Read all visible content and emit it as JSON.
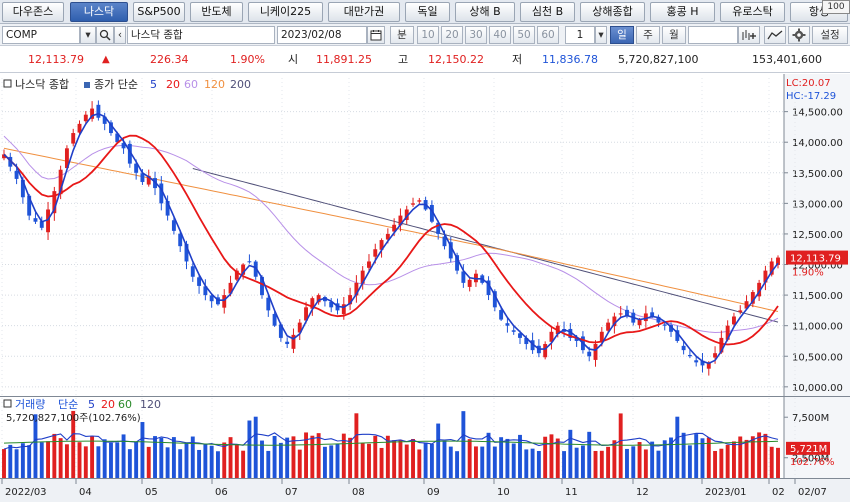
{
  "tabs": [
    {
      "label": "다우존스",
      "active": false
    },
    {
      "label": "나스닥",
      "active": true
    },
    {
      "label": "S&P500",
      "active": false
    },
    {
      "label": "반도체",
      "active": false
    },
    {
      "label": "니케이225",
      "active": false
    },
    {
      "label": "대만가권",
      "active": false
    },
    {
      "label": "독일",
      "active": false
    },
    {
      "label": "상해 B",
      "active": false
    },
    {
      "label": "심천 B",
      "active": false
    },
    {
      "label": "상해종합",
      "active": false
    },
    {
      "label": "홍콩 H",
      "active": false
    },
    {
      "label": "유로스탁",
      "active": false
    },
    {
      "label": "항셍",
      "active": false
    }
  ],
  "corner_label": "100",
  "toolbar": {
    "symbol": "COMP",
    "name": "나스닥 종합",
    "date": "2023/02/08",
    "period_labels": [
      "분",
      "10",
      "20",
      "30",
      "40",
      "50",
      "60"
    ],
    "count": "1",
    "unit_labels": [
      "일",
      "주",
      "월"
    ],
    "settings_label": "설정"
  },
  "quote": {
    "price": "12,113.79",
    "change": "226.34",
    "change_pct": "1.90%",
    "open_label": "시",
    "open": "11,891.25",
    "high_label": "고",
    "high": "12,150.22",
    "low_label": "저",
    "low": "11,836.78",
    "volume": "5,720,827,100",
    "amount": "153,401,600"
  },
  "colors": {
    "up": "#e02020",
    "down": "#1f54d8",
    "ma5": "#1f3fc8",
    "ma20": "#e81818",
    "ma60": "#b890e8",
    "ma120": "#f09040",
    "ma200": "#505078",
    "accent": "#3b66b3"
  },
  "chart_data": {
    "type": "candlestick",
    "title": "나스닥 종합",
    "legend": {
      "prefix": "종가 단순",
      "periods": [
        "5",
        "20",
        "60",
        "120",
        "200"
      ],
      "placement": "top-left"
    },
    "y_ticks": [
      10000,
      10500,
      11000,
      11500,
      12000,
      12500,
      13000,
      13500,
      14000,
      14500
    ],
    "y_tick_labels": [
      "10,000.00",
      "10,500.00",
      "11,000.00",
      "11,500.00",
      "12,000.00",
      "12,500.00",
      "13,000.00",
      "13,500.00",
      "14,000.00",
      "14,500.00"
    ],
    "ylim": [
      9850,
      15050
    ],
    "x_labels": [
      "2022/03",
      "04",
      "05",
      "06",
      "07",
      "08",
      "09",
      "10",
      "11",
      "12",
      "2023/01",
      "02",
      "02/07"
    ],
    "lc_label": "LC:20.07",
    "hc_label": "HC:-17.29",
    "last_price_label": "12,113.79",
    "last_pct_label": "1.90%",
    "close_series": [
      13800,
      13600,
      13400,
      13100,
      12800,
      12700,
      12600,
      12900,
      13200,
      13550,
      13900,
      14150,
      14300,
      14450,
      14550,
      14400,
      14300,
      14150,
      14000,
      13900,
      13650,
      13500,
      13350,
      13450,
      13250,
      13000,
      12800,
      12550,
      12300,
      12050,
      11800,
      11650,
      11500,
      11400,
      11350,
      11500,
      11700,
      11900,
      12000,
      12050,
      11800,
      11500,
      11250,
      11000,
      10800,
      10700,
      10850,
      11050,
      11300,
      11450,
      11500,
      11400,
      11300,
      11250,
      11350,
      11500,
      11700,
      11900,
      12050,
      12250,
      12400,
      12500,
      12650,
      12800,
      12900,
      13000,
      13050,
      12900,
      12700,
      12500,
      12300,
      12100,
      11900,
      11700,
      11750,
      11850,
      11700,
      11500,
      11300,
      11100,
      11000,
      10900,
      10800,
      10700,
      10600,
      10550,
      10700,
      10900,
      11000,
      10900,
      10800,
      10750,
      10600,
      10500,
      10700,
      10900,
      11050,
      11150,
      11200,
      11150,
      11050,
      11100,
      11200,
      11150,
      11050,
      11000,
      10900,
      10750,
      10600,
      10500,
      10400,
      10350,
      10400,
      10550,
      10800,
      11000,
      11150,
      11250,
      11400,
      11550,
      11700,
      11900,
      12050,
      12113.79
    ],
    "volume_axis": {
      "labels": [
        "7,500M",
        "2,500M"
      ],
      "last_label": "5,721M",
      "last_pct_label": "102.76%"
    },
    "volume_legend": {
      "title": "거래량",
      "prefix": "단순",
      "periods": [
        "5",
        "20",
        "60",
        "120"
      ],
      "value_text": "5,720,827,100주(102.76%)"
    }
  }
}
